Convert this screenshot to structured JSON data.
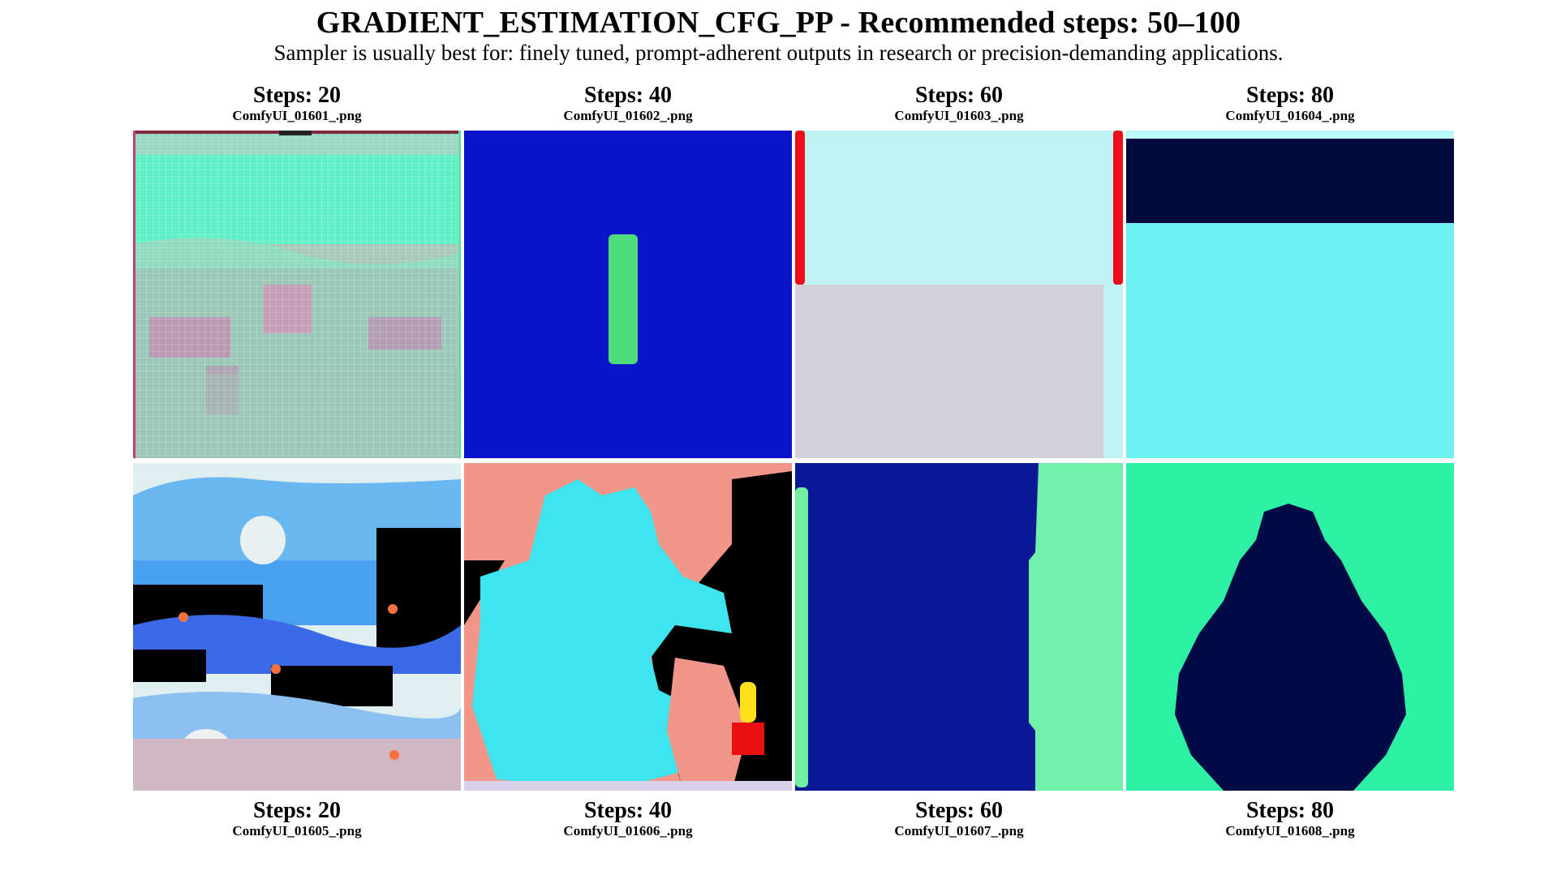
{
  "header": {
    "title": "GRADIENT_ESTIMATION_CFG_PP - Recommended steps: 50–100",
    "subtitle": "Sampler is usually best for: finely tuned, prompt-adherent outputs in research or precision-demanding applications."
  },
  "grid": {
    "top_row": [
      {
        "steps": "Steps: 20",
        "file": "ComfyUI_01601_.png"
      },
      {
        "steps": "Steps: 40",
        "file": "ComfyUI_01602_.png"
      },
      {
        "steps": "Steps: 60",
        "file": "ComfyUI_01603_.png"
      },
      {
        "steps": "Steps: 80",
        "file": "ComfyUI_01604_.png"
      }
    ],
    "bottom_row": [
      {
        "steps": "Steps: 20",
        "file": "ComfyUI_01605_.png"
      },
      {
        "steps": "Steps: 40",
        "file": "ComfyUI_01606_.png"
      },
      {
        "steps": "Steps: 60",
        "file": "ComfyUI_01607_.png"
      },
      {
        "steps": "Steps: 80",
        "file": "ComfyUI_01608_.png"
      }
    ]
  },
  "colors": {
    "background": "#ffffff",
    "text": "#000000"
  }
}
